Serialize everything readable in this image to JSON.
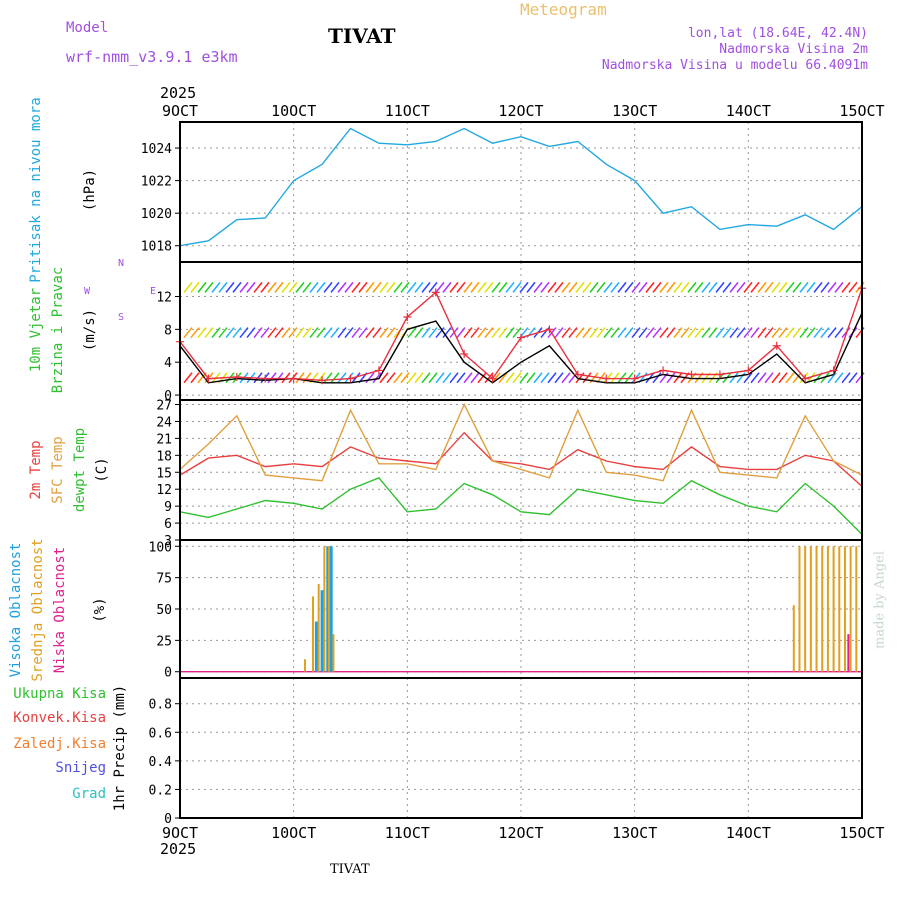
{
  "header": {
    "model_label": "Model",
    "model_name": "wrf-nmm_v3.9.1 e3km",
    "station": "TIVAT",
    "product": "Meteogram",
    "coords": "lon,lat (18.64E, 42.4N)",
    "elevation": "Nadmorska Visina 2m",
    "model_elevation": "Nadmorska Visina u modelu 66.4091m",
    "credit": "made by Angel",
    "footer_station": "TIVAT"
  },
  "colors": {
    "pressure": "#22a8e0",
    "t2m": "#e84040",
    "sfc": "#e0a040",
    "dewpt": "#30c030",
    "cloud_high": "#20a0e0",
    "cloud_mid": "#e0a020",
    "cloud_low": "#e02090",
    "wind_speed": "#000000",
    "gust": "#e83040",
    "label_purple": "#a050e0",
    "label_green": "#30c030",
    "label_red": "#e84040",
    "label_orange": "#f08030",
    "label_blue": "#5050e0",
    "label_teal": "#30c0c0"
  },
  "chart_data": [
    {
      "id": "pressure",
      "type": "line",
      "ylabel_colored": "Pritisak na nivou mora",
      "unit": "(hPa)",
      "ylim": [
        1017,
        1025.6
      ],
      "yticks": [
        "1018",
        "1020",
        "1022",
        "1024"
      ],
      "grid": true,
      "series": [
        {
          "x": [
            9.0,
            9.25,
            9.5,
            9.75,
            10.0,
            10.25,
            10.5,
            10.75,
            11.0,
            11.25,
            11.5,
            11.75,
            12.0,
            12.25,
            12.5,
            12.75,
            13.0,
            13.25,
            13.5,
            13.75,
            14.0,
            14.25,
            14.5,
            14.75,
            15.0
          ],
          "y": [
            1018.0,
            1018.3,
            1019.6,
            1019.7,
            1022.0,
            1023.0,
            1025.2,
            1024.3,
            1024.2,
            1024.4,
            1025.2,
            1024.3,
            1024.7,
            1024.1,
            1024.4,
            1023.0,
            1022.0,
            1020.0,
            1020.4,
            1019.0,
            1019.3,
            1019.2,
            1019.9,
            1019.0,
            1020.4
          ]
        }
      ]
    },
    {
      "id": "wind",
      "type": "line",
      "ylabel_colored_1": "10m Vjetar",
      "ylabel_colored_2": "Brzina i Pravac",
      "unit": "(m/s)",
      "compass": {
        "n": "N",
        "s": "S",
        "e": "E",
        "w": "W"
      },
      "ylim": [
        -0.6,
        16.2
      ],
      "yticks": [
        "0",
        "4",
        "8",
        "12"
      ],
      "grid": true,
      "barb_levels": [
        1.5,
        7.0,
        12.5
      ],
      "series": [
        {
          "name": "speed",
          "x": [
            9.0,
            9.25,
            9.5,
            9.75,
            10.0,
            10.25,
            10.5,
            10.75,
            11.0,
            11.25,
            11.5,
            11.75,
            12.0,
            12.25,
            12.5,
            12.75,
            13.0,
            13.25,
            13.5,
            13.75,
            14.0,
            14.25,
            14.5,
            14.75,
            15.0
          ],
          "y": [
            6.0,
            1.5,
            2.0,
            1.8,
            2.0,
            1.5,
            1.5,
            2.0,
            8.0,
            9.0,
            4.0,
            1.5,
            4.0,
            6.0,
            2.0,
            1.5,
            1.5,
            2.5,
            2.0,
            2.0,
            2.5,
            5.0,
            1.5,
            2.5,
            10.0
          ]
        },
        {
          "name": "gust",
          "x": [
            9.0,
            9.25,
            9.5,
            9.75,
            10.0,
            10.25,
            10.5,
            10.75,
            11.0,
            11.25,
            11.5,
            11.75,
            12.0,
            12.25,
            12.5,
            12.75,
            13.0,
            13.25,
            13.5,
            13.75,
            14.0,
            14.25,
            14.5,
            14.75,
            15.0
          ],
          "y": [
            6.5,
            2.0,
            2.2,
            2.0,
            2.0,
            1.8,
            2.0,
            3.0,
            9.5,
            12.5,
            5.0,
            2.0,
            7.0,
            8.0,
            2.5,
            2.0,
            2.0,
            3.0,
            2.5,
            2.5,
            3.0,
            6.0,
            2.0,
            3.0,
            13.0
          ]
        }
      ]
    },
    {
      "id": "temperature",
      "type": "line",
      "ylabel_colored_1": "2m Temp",
      "ylabel_colored_2": "SFC Temp",
      "ylabel_colored_3": "dewpt Temp",
      "unit": "(C)",
      "ylim": [
        3,
        27.8
      ],
      "yticks": [
        "3",
        "6",
        "9",
        "12",
        "15",
        "18",
        "21",
        "24",
        "27"
      ],
      "grid": true,
      "series": [
        {
          "name": "t2m",
          "x": [
            9.0,
            9.25,
            9.5,
            9.75,
            10.0,
            10.25,
            10.5,
            10.75,
            11.0,
            11.25,
            11.5,
            11.75,
            12.0,
            12.25,
            12.5,
            12.75,
            13.0,
            13.25,
            13.5,
            13.75,
            14.0,
            14.25,
            14.5,
            14.75,
            15.0
          ],
          "y": [
            14.5,
            17.5,
            18.0,
            16.0,
            16.5,
            16.0,
            19.5,
            17.5,
            17.0,
            16.5,
            22.0,
            17.0,
            16.5,
            15.5,
            19.0,
            17.0,
            16.0,
            15.5,
            19.5,
            16.0,
            15.5,
            15.5,
            18.0,
            17.0,
            12.5
          ]
        },
        {
          "name": "sfc",
          "x": [
            9.0,
            9.25,
            9.5,
            9.75,
            10.0,
            10.25,
            10.5,
            10.75,
            11.0,
            11.25,
            11.5,
            11.75,
            12.0,
            12.25,
            12.5,
            12.75,
            13.0,
            13.25,
            13.5,
            13.75,
            14.0,
            14.25,
            14.5,
            14.75,
            15.0
          ],
          "y": [
            15.5,
            20.0,
            25.0,
            14.5,
            14.0,
            13.5,
            26.0,
            16.5,
            16.5,
            15.5,
            27.0,
            17.0,
            15.5,
            14.0,
            26.0,
            15.0,
            14.5,
            13.5,
            26.0,
            15.0,
            14.5,
            14.0,
            25.0,
            17.0,
            14.5
          ]
        },
        {
          "name": "dewpt",
          "x": [
            9.0,
            9.25,
            9.5,
            9.75,
            10.0,
            10.25,
            10.5,
            10.75,
            11.0,
            11.25,
            11.5,
            11.75,
            12.0,
            12.25,
            12.5,
            12.75,
            13.0,
            13.25,
            13.5,
            13.75,
            14.0,
            14.25,
            14.5,
            14.75,
            15.0
          ],
          "y": [
            8.0,
            7.0,
            8.5,
            10.0,
            9.5,
            8.5,
            12.0,
            14.0,
            8.0,
            8.5,
            13.0,
            11.0,
            8.0,
            7.5,
            12.0,
            11.0,
            10.0,
            9.5,
            13.5,
            11.0,
            9.0,
            8.0,
            13.0,
            9.0,
            4.0
          ]
        }
      ]
    },
    {
      "id": "cloud",
      "type": "bar",
      "ylabel_colored_1": "Visoka Oblacnost",
      "ylabel_colored_2": "Srednja Oblacnost",
      "ylabel_colored_3": "Niska Oblacnost",
      "unit": "(%)",
      "ylim": [
        -5,
        105
      ],
      "yticks": [
        "0",
        "25",
        "50",
        "75",
        "100"
      ],
      "grid": true,
      "series": [
        {
          "name": "high",
          "x": [
            10.2,
            10.25,
            10.3,
            10.33
          ],
          "y": [
            40,
            65,
            100,
            100
          ]
        },
        {
          "name": "mid",
          "x": [
            10.1,
            10.17,
            10.22,
            10.27,
            10.31,
            10.35,
            14.4,
            14.45,
            14.5,
            14.55,
            14.6,
            14.65,
            14.7,
            14.75,
            14.8,
            14.85,
            14.9,
            14.95,
            15.0
          ],
          "y": [
            10,
            60,
            70,
            100,
            100,
            30,
            53,
            100,
            100,
            100,
            100,
            100,
            100,
            100,
            100,
            100,
            100,
            100,
            100
          ]
        },
        {
          "name": "low",
          "x": [
            14.88
          ],
          "y": [
            30
          ]
        }
      ]
    },
    {
      "id": "precip",
      "type": "line",
      "unit": "1hr Precip (mm)",
      "legend": [
        "Ukupna Kisa",
        "Konvek.Kisa",
        "Zaledj.Kisa",
        "Snijeg",
        "Grad"
      ],
      "ylim": [
        0,
        0.98
      ],
      "yticks": [
        "0",
        "0.2",
        "0.4",
        "0.6",
        "0.8"
      ],
      "grid": true,
      "series": []
    }
  ],
  "xaxis": {
    "year": "2025",
    "labels": [
      "9OCT",
      "10OCT",
      "11OCT",
      "12OCT",
      "13OCT",
      "14OCT",
      "15OCT"
    ],
    "values": [
      9,
      10,
      11,
      12,
      13,
      14,
      15
    ],
    "range": [
      9,
      15
    ]
  }
}
